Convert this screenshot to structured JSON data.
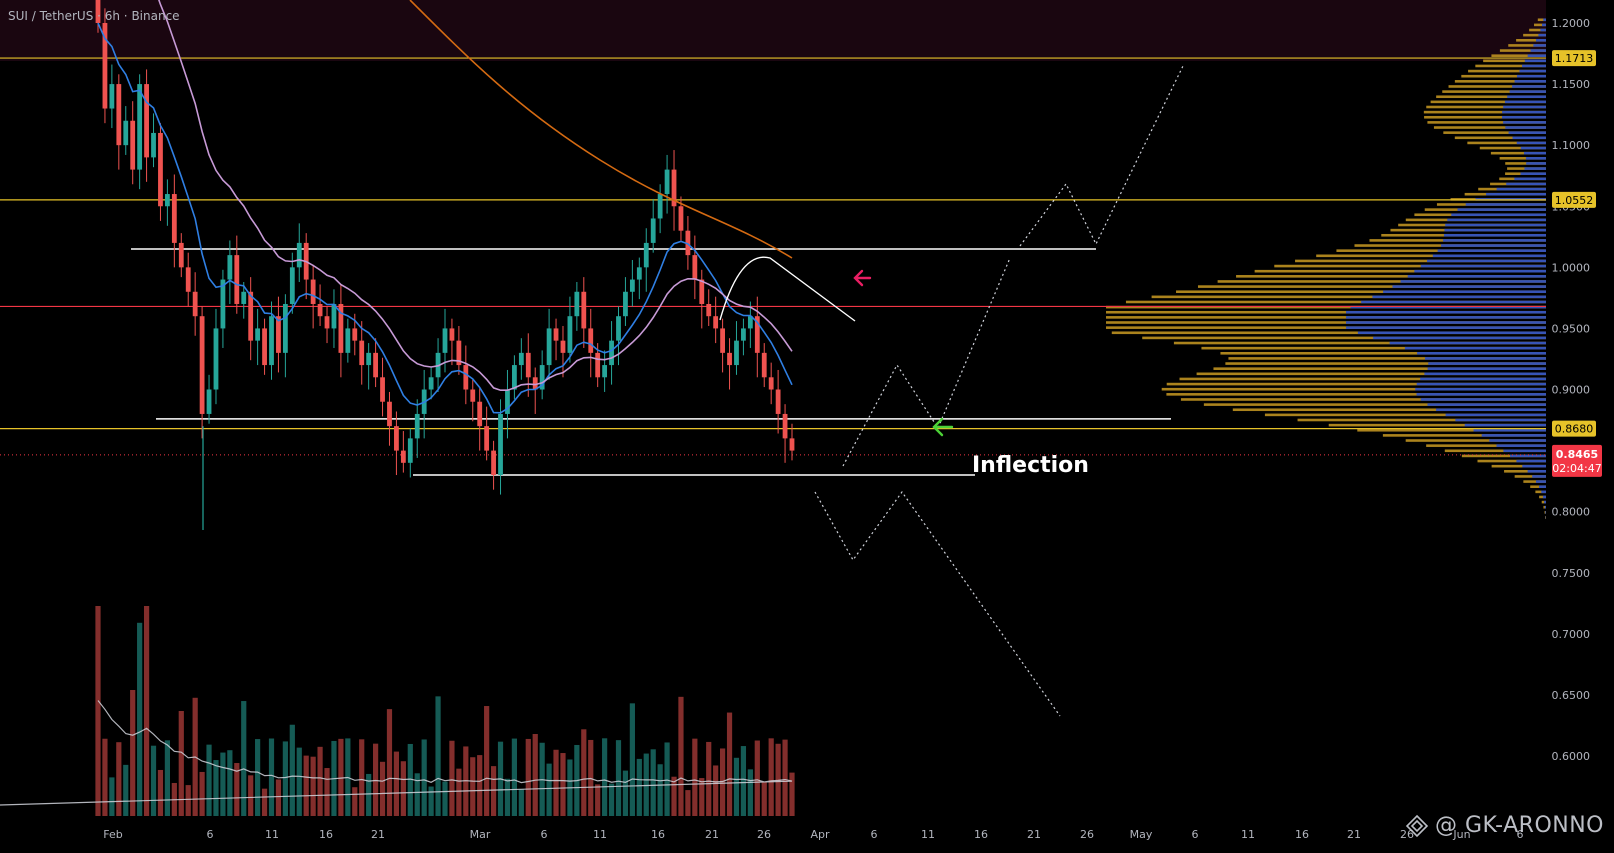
{
  "header": {
    "title": "SUI / TetherUS · 6h · Binance"
  },
  "watermark": {
    "text": "@ GK-ARONNO"
  },
  "colors": {
    "bg": "#000000",
    "premium_zone": "#1a0610",
    "up": "#26a69a",
    "down": "#ef5350",
    "yellow_level": "#e6c229",
    "red_level": "#f23645",
    "white_level": "#ffffff",
    "ema_fast": "#2f7fe3",
    "ema_mid": "#c79ad6",
    "ema_slow": "#d46a12",
    "vp_orange": "#c99a22",
    "vp_blue": "#2a4fc8",
    "price_tag": "#f23645"
  },
  "chart_data": {
    "type": "candlestick",
    "timeframe": "6h",
    "yaxis": {
      "ticks": [
        "1.2000",
        "1.1500",
        "1.1000",
        "1.0500",
        "1.0000",
        "0.9500",
        "0.9000",
        "0.8500",
        "0.8000",
        "0.7500",
        "0.7000",
        "0.6500",
        "0.6000"
      ],
      "range": [
        0.56,
        1.21
      ]
    },
    "xaxis": {
      "ticks": [
        "Feb",
        "6",
        "11",
        "16",
        "21",
        "Mar",
        "6",
        "11",
        "16",
        "21",
        "26",
        "Apr",
        "6",
        "11",
        "16",
        "21",
        "26",
        "May",
        "6",
        "11",
        "16",
        "21",
        "26",
        "Jun",
        "6"
      ]
    },
    "levels": [
      {
        "price": 1.1713,
        "label": "1.1713",
        "color": "#e6c229"
      },
      {
        "price": 1.0552,
        "label": "1.0552",
        "color": "#e6c229"
      },
      {
        "price": 0.968,
        "label": "",
        "color": "#f23645"
      },
      {
        "price": 0.868,
        "label": "0.8680",
        "color": "#e6c229"
      }
    ],
    "support_resistance": [
      {
        "price": 1.015,
        "from": "Feb 3",
        "to": "Apr 26"
      },
      {
        "price": 0.876,
        "from": "Feb 4",
        "to": "Apr 29"
      },
      {
        "price": 0.83,
        "from": "Feb 24",
        "to": "Apr 15"
      }
    ],
    "current_price": {
      "price": 0.8465,
      "label": "0.8465",
      "countdown": "02:04:47"
    },
    "annotation": {
      "text": "Inflection",
      "price": 0.846
    },
    "closes": [
      1.2,
      1.13,
      1.15,
      1.1,
      1.12,
      1.08,
      1.15,
      1.09,
      1.11,
      1.05,
      1.06,
      1.02,
      1.0,
      0.98,
      0.96,
      0.88,
      0.9,
      0.95,
      0.99,
      1.01,
      0.97,
      0.98,
      0.94,
      0.95,
      0.92,
      0.96,
      0.93,
      0.97,
      1.0,
      1.02,
      0.99,
      0.97,
      0.96,
      0.95,
      0.97,
      0.93,
      0.95,
      0.94,
      0.92,
      0.93,
      0.91,
      0.89,
      0.87,
      0.85,
      0.84,
      0.86,
      0.88,
      0.9,
      0.91,
      0.93,
      0.95,
      0.94,
      0.92,
      0.9,
      0.89,
      0.87,
      0.85,
      0.83,
      0.88,
      0.9,
      0.92,
      0.93,
      0.91,
      0.9,
      0.92,
      0.95,
      0.94,
      0.93,
      0.96,
      0.98,
      0.95,
      0.93,
      0.91,
      0.92,
      0.94,
      0.96,
      0.98,
      0.99,
      1.0,
      1.02,
      1.04,
      1.06,
      1.08,
      1.05,
      1.03,
      1.01,
      0.99,
      0.97,
      0.96,
      0.95,
      0.93,
      0.92,
      0.94,
      0.95,
      0.96,
      0.93,
      0.91,
      0.9,
      0.88,
      0.86,
      0.85
    ],
    "volume_spikes": [
      {
        "date": "Feb 1",
        "value": 1.0
      },
      {
        "date": "Feb 5",
        "value": 0.92
      },
      {
        "date": "Feb 6",
        "value": 1.0
      }
    ]
  }
}
